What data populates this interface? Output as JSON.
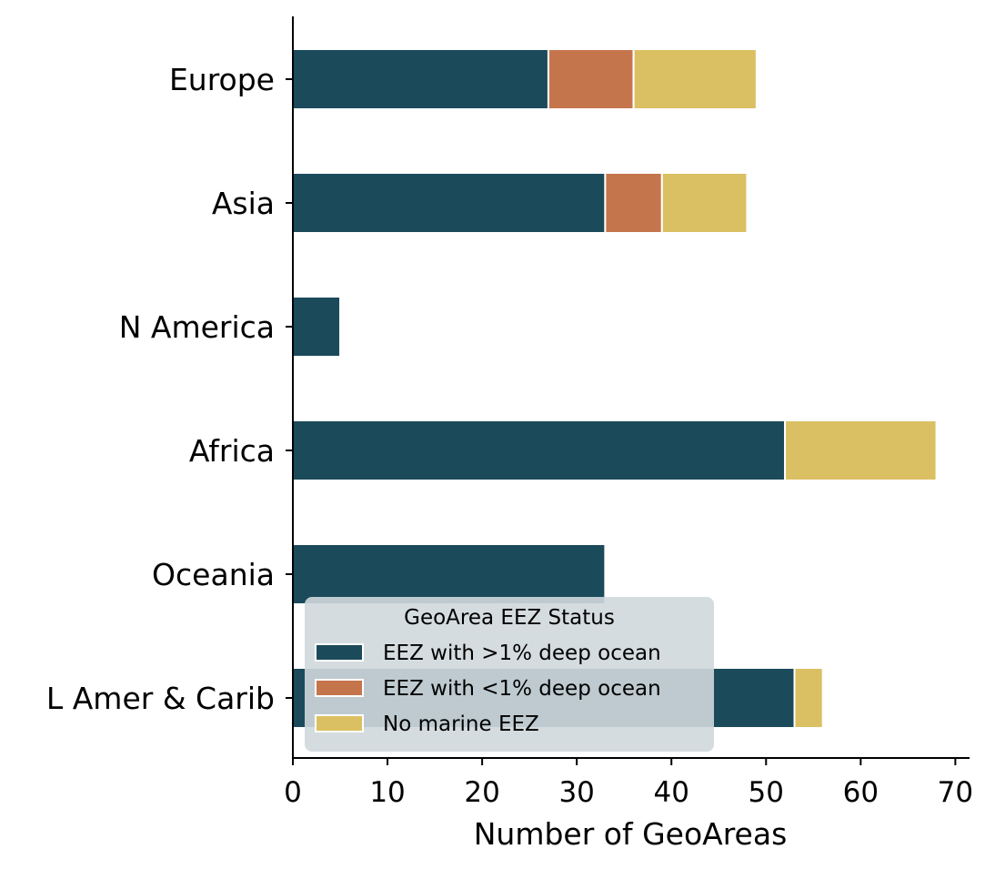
{
  "chart_data": {
    "type": "bar",
    "orientation": "horizontal",
    "stacked": true,
    "categories": [
      "Europe",
      "Asia",
      "N America",
      "Africa",
      "Oceania",
      "L Amer & Carib"
    ],
    "series": [
      {
        "name": "EEZ with >1% deep ocean",
        "values": [
          27,
          33,
          5,
          52,
          33,
          53
        ],
        "color": "#1b4a5a"
      },
      {
        "name": "EEZ with <1% deep ocean",
        "values": [
          9,
          6,
          0,
          0,
          0,
          0
        ],
        "color": "#c5754c"
      },
      {
        "name": "No marine EEZ",
        "values": [
          13,
          9,
          0,
          16,
          0,
          3
        ],
        "color": "#dbc063"
      }
    ],
    "xlabel": "Number of GeoAreas",
    "ylabel": "",
    "xlim": [
      0,
      71.5
    ],
    "xticks": [
      0,
      10,
      20,
      30,
      40,
      50,
      60,
      70
    ],
    "grid": false,
    "legend": {
      "title": "GeoArea EEZ Status",
      "placement": "lower-center"
    }
  }
}
